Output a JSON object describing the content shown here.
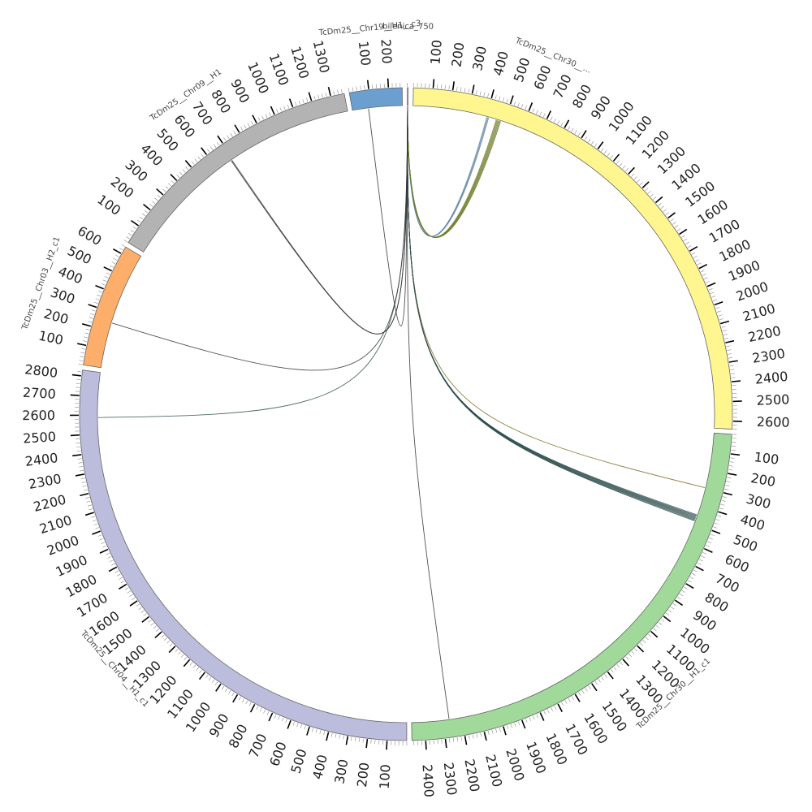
{
  "chart_data": {
    "type": "circos",
    "tick_unit": 100,
    "segments": [
      {
        "name": "bilenica_750",
        "length": 5,
        "color": "#ffffff",
        "ticks": []
      },
      {
        "name": "TcDm25__Chr30__...",
        "length": 2640,
        "color": "#FFF68F",
        "ticks": [
          "100",
          "200",
          "300",
          "400",
          "500",
          "600",
          "700",
          "800",
          "900",
          "1000",
          "1100",
          "1200",
          "1300",
          "1400",
          "1500",
          "1600",
          "1700",
          "1800",
          "1900",
          "2000",
          "2100",
          "2200",
          "2300",
          "2400",
          "2500",
          "2600"
        ]
      },
      {
        "name": "TcDm25__Chr30__H1_c1",
        "length": 2470,
        "color": "#A1D99B",
        "ticks": [
          "100",
          "200",
          "300",
          "400",
          "500",
          "600",
          "700",
          "800",
          "900",
          "1000",
          "1100",
          "1200",
          "1300",
          "1400",
          "1500",
          "1600",
          "1700",
          "1800",
          "1900",
          "2000",
          "2100",
          "2200",
          "2300",
          "2400"
        ]
      },
      {
        "name": "TcDm25__Chr04__H1_c1",
        "length": 2830,
        "color": "#BCBDDC",
        "ticks": [
          "100",
          "200",
          "300",
          "400",
          "500",
          "600",
          "700",
          "800",
          "900",
          "1000",
          "1100",
          "1200",
          "1300",
          "1400",
          "1500",
          "1600",
          "1700",
          "1800",
          "1900",
          "2000",
          "2100",
          "2200",
          "2300",
          "2400",
          "2500",
          "2600",
          "2700",
          "2800"
        ]
      },
      {
        "name": "TcDm25__Chr03__H2_c1",
        "length": 640,
        "color": "#FDAE6B",
        "ticks": [
          "100",
          "200",
          "300",
          "400",
          "500",
          "600"
        ]
      },
      {
        "name": "TcDm25__Chr09__H1",
        "length": 1370,
        "color": "#B3B3B3",
        "ticks": [
          "100",
          "200",
          "300",
          "400",
          "500",
          "600",
          "700",
          "800",
          "900",
          "1000",
          "1100",
          "1200",
          "1300"
        ]
      },
      {
        "name": "TcDm25__Chr19__H1__c3",
        "length": 270,
        "color": "#6A9FD0",
        "ticks": [
          "100",
          "200"
        ]
      }
    ],
    "links": [
      {
        "from": [
          0,
          2
        ],
        "to": [
          1,
          410
        ],
        "color": "#5a7fa0",
        "count": 3
      },
      {
        "from": [
          0,
          2
        ],
        "to": [
          1,
          470
        ],
        "color": "#6d7a2a",
        "count": 6
      },
      {
        "from": [
          0,
          2
        ],
        "to": [
          2,
          300
        ],
        "color": "#7a6a1a",
        "count": 1
      },
      {
        "from": [
          0,
          2
        ],
        "to": [
          2,
          470
        ],
        "color": "#2f4f4f",
        "count": 8
      },
      {
        "from": [
          0,
          2
        ],
        "to": [
          2,
          2270
        ],
        "color": "#333333",
        "count": 1
      },
      {
        "from": [
          0,
          2
        ],
        "to": [
          3,
          2590
        ],
        "color": "#2f5050",
        "count": 1
      },
      {
        "from": [
          0,
          2
        ],
        "to": [
          4,
          250
        ],
        "color": "#333333",
        "count": 1
      },
      {
        "from": [
          0,
          2
        ],
        "to": [
          5,
          690
        ],
        "color": "#333333",
        "count": 2
      },
      {
        "from": [
          0,
          2
        ],
        "to": [
          6,
          90
        ],
        "color": "#333333",
        "count": 1
      }
    ]
  }
}
